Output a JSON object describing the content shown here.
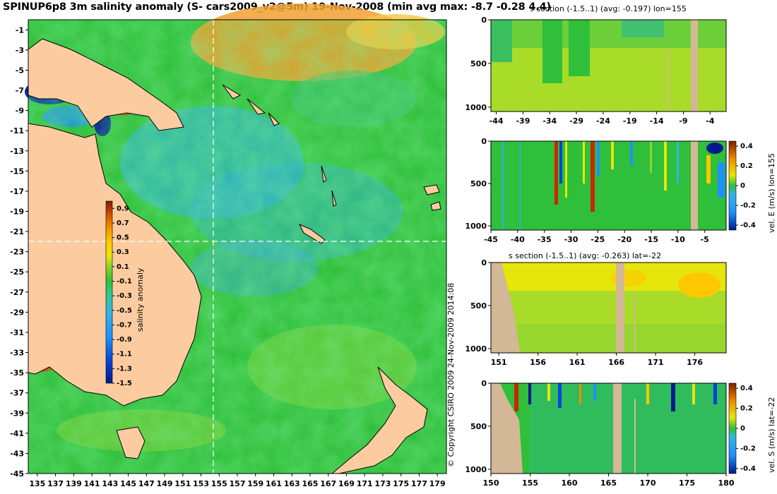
{
  "page_title": "SPINUP6p8 3m salinity anomaly (S- cars2009_v2@5m) 19-Nov-2008 (min avg max: -8.7 -0.28 4.4)",
  "copyright": "© Copyright CSIRO 2009  24-Nov-2009 2014:08",
  "colors": {
    "land": "#fccca0",
    "land_section": "#d2b896",
    "ocean_base": "#2fbf3a",
    "colormap": [
      "#001a8c",
      "#0044d8",
      "#1e90ff",
      "#34b4e4",
      "#32c88c",
      "#2fbf3a",
      "#8cd232",
      "#e6e60a",
      "#ffc800",
      "#f08c00",
      "#c84600",
      "#781e00"
    ]
  },
  "chart_data": [
    {
      "type": "heatmap",
      "title": "",
      "xlabel": "",
      "ylabel": "",
      "x_ticks": [
        "135",
        "137",
        "139",
        "141",
        "143",
        "145",
        "147",
        "149",
        "151",
        "153",
        "155",
        "157",
        "159",
        "161",
        "163",
        "165",
        "167",
        "169",
        "171",
        "173",
        "175",
        "177",
        "179"
      ],
      "y_ticks": [
        "-1",
        "-3",
        "-5",
        "-7",
        "-9",
        "-11",
        "-13",
        "-15",
        "-17",
        "-19",
        "-21",
        "-23",
        "-25",
        "-27",
        "-29",
        "-31",
        "-33",
        "-35",
        "-37",
        "-39",
        "-41",
        "-43",
        "-45"
      ],
      "xlim": [
        134,
        180
      ],
      "ylim": [
        -45,
        0
      ],
      "section_lines": {
        "lon": 155,
        "lat": -22
      },
      "colorbar": {
        "label": "salinity anomaly",
        "ticks": [
          "0.9",
          "0.7",
          "0.5",
          "0.3",
          "0.1",
          "-0.1",
          "-0.3",
          "-0.5",
          "-0.7",
          "-0.9",
          "-1.1",
          "-1.3",
          "-1.5"
        ],
        "range": [
          -1.5,
          1.0
        ]
      }
    },
    {
      "type": "heatmap",
      "title": "s section (-1.5..1) (avg: -0.197) lon=155",
      "x_ticks": [
        "-44",
        "-39",
        "-34",
        "-29",
        "-24",
        "-19",
        "-14",
        "-9",
        "-4"
      ],
      "y_ticks": [
        "0",
        "500",
        "1000"
      ],
      "xlim": [
        -45,
        -1
      ],
      "ylim": [
        1050,
        0
      ]
    },
    {
      "type": "heatmap",
      "title": "",
      "x_ticks": [
        "-45",
        "-40",
        "-35",
        "-30",
        "-25",
        "-20",
        "-15",
        "-10",
        "-5"
      ],
      "y_ticks": [
        "0",
        "500",
        "1000"
      ],
      "xlim": [
        -45,
        -1
      ],
      "ylim": [
        1050,
        0
      ],
      "colorbar": {
        "label": "vel. E (m/s) lon=155",
        "ticks": [
          "0.4",
          "0.2",
          "0",
          "-0.2",
          "-0.4"
        ],
        "range": [
          -0.45,
          0.45
        ]
      }
    },
    {
      "type": "heatmap",
      "title": "s section (-1.5..1) (avg: -0.263) lat=-22",
      "x_ticks": [
        "151",
        "156",
        "161",
        "166",
        "171",
        "176"
      ],
      "y_ticks": [
        "0",
        "500",
        "1000"
      ],
      "xlim": [
        150,
        180
      ],
      "ylim": [
        1050,
        0
      ]
    },
    {
      "type": "heatmap",
      "title": "",
      "x_ticks": [
        "150",
        "155",
        "160",
        "165",
        "170",
        "175",
        "180"
      ],
      "y_ticks": [
        "0",
        "500",
        "1000"
      ],
      "xlim": [
        150,
        180
      ],
      "ylim": [
        1050,
        0
      ],
      "colorbar": {
        "label": "vel. S (m/s) lat=-22",
        "ticks": [
          "0.4",
          "0.2",
          "0",
          "-0.2",
          "-0.4"
        ],
        "range": [
          -0.45,
          0.45
        ]
      }
    }
  ]
}
